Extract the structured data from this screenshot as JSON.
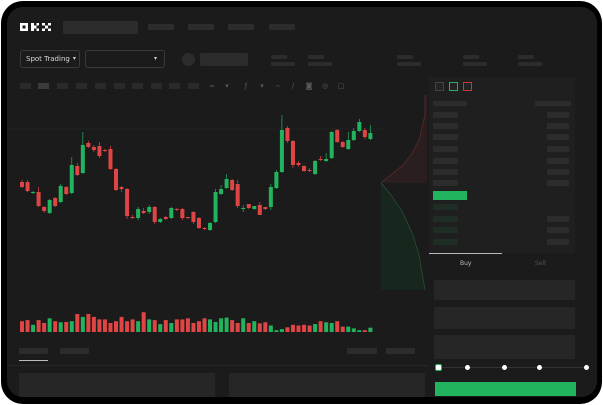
{
  "brand": {
    "logo": "OKX"
  },
  "header": {
    "nav_items": 4
  },
  "pair_bar": {
    "mode_select": "Spot Trading"
  },
  "colors": {
    "up": "#22b35e",
    "down": "#e04545",
    "background": "#1b1b1b",
    "placeholder": "#2c2c2c"
  },
  "toolbar": {
    "icons": [
      "candle-interval",
      "chart-type",
      "indicator-icon",
      "line-icon",
      "draw-icon",
      "camera-icon",
      "settings-icon",
      "fullscreen-icon"
    ]
  },
  "order_book": {
    "view_icons": [
      "both-sides-icon",
      "bids-only-icon",
      "asks-only-icon"
    ]
  },
  "trade_panel": {
    "tabs": [
      {
        "label": "Buy",
        "active": true
      },
      {
        "label": "Sell",
        "active": false
      }
    ],
    "slider_percent": 0,
    "slider_stops": [
      0,
      25,
      50,
      75,
      100
    ]
  },
  "chart_data": {
    "type": "candlestick",
    "candles": [
      [
        68,
        70,
        62,
        63
      ],
      [
        68,
        70,
        58,
        59
      ],
      [
        57,
        59,
        56,
        58
      ],
      [
        58,
        63,
        43,
        44
      ],
      [
        43,
        44,
        37,
        39
      ],
      [
        37,
        51,
        36,
        50
      ],
      [
        52,
        53,
        43,
        44
      ],
      [
        48,
        66,
        47,
        64
      ],
      [
        63,
        64,
        55,
        56
      ],
      [
        57,
        93,
        56,
        85
      ],
      [
        84,
        87,
        74,
        75
      ],
      [
        77,
        118,
        76,
        105
      ],
      [
        107,
        109,
        102,
        103
      ],
      [
        103,
        105,
        98,
        100
      ],
      [
        104,
        108,
        92,
        94
      ],
      [
        100,
        101,
        98,
        99
      ],
      [
        101,
        104,
        80,
        81
      ],
      [
        81,
        82,
        59,
        60
      ],
      [
        63,
        64,
        58,
        61
      ],
      [
        61,
        62,
        31,
        34
      ],
      [
        33,
        35,
        31,
        32
      ],
      [
        32,
        43,
        30,
        41
      ],
      [
        39,
        42,
        36,
        37
      ],
      [
        38,
        45,
        36,
        43
      ],
      [
        43,
        44,
        26,
        28
      ],
      [
        28,
        32,
        27,
        31
      ],
      [
        33,
        34,
        30,
        31
      ],
      [
        32,
        43,
        31,
        42
      ],
      [
        41,
        42,
        39,
        40
      ],
      [
        41,
        42,
        30,
        32
      ],
      [
        33,
        33,
        31,
        32
      ],
      [
        38,
        39,
        26,
        28
      ],
      [
        32,
        33,
        21,
        22
      ],
      [
        22,
        23,
        20,
        21
      ],
      [
        20,
        28,
        19,
        27
      ],
      [
        28,
        61,
        27,
        58
      ],
      [
        56,
        65,
        55,
        61
      ],
      [
        62,
        76,
        61,
        71
      ],
      [
        70,
        71,
        59,
        60
      ],
      [
        66,
        70,
        42,
        44
      ],
      [
        41,
        45,
        38,
        42
      ],
      [
        46,
        46,
        41,
        42
      ],
      [
        41,
        44,
        40,
        44
      ],
      [
        45,
        48,
        35,
        35
      ],
      [
        43,
        43,
        40,
        41
      ],
      [
        43,
        66,
        40,
        63
      ],
      [
        62,
        80,
        61,
        78
      ],
      [
        78,
        135,
        77,
        120
      ],
      [
        122,
        124,
        107,
        109
      ],
      [
        109,
        110,
        82,
        85
      ],
      [
        87,
        89,
        83,
        85
      ],
      [
        84,
        85,
        78,
        79
      ],
      [
        80,
        82,
        78,
        79
      ],
      [
        76,
        90,
        75,
        89
      ],
      [
        91,
        94,
        89,
        90
      ],
      [
        89,
        97,
        88,
        91
      ],
      [
        92,
        119,
        91,
        118
      ],
      [
        120,
        121,
        107,
        108
      ],
      [
        108,
        109,
        102,
        103
      ],
      [
        101,
        118,
        100,
        110
      ],
      [
        110,
        122,
        109,
        119
      ],
      [
        119,
        131,
        118,
        128
      ],
      [
        120,
        122,
        111,
        113
      ],
      [
        111,
        125,
        110,
        117
      ]
    ],
    "volumes": [
      30,
      33,
      20,
      33,
      25,
      38,
      30,
      27,
      28,
      30,
      50,
      42,
      50,
      42,
      35,
      35,
      25,
      30,
      42,
      30,
      35,
      30,
      55,
      35,
      33,
      22,
      33,
      25,
      35,
      35,
      38,
      25,
      30,
      38,
      35,
      28,
      38,
      40,
      33,
      25,
      38,
      25,
      30,
      24,
      27,
      18,
      5,
      8,
      13,
      20,
      18,
      20,
      18,
      22,
      30,
      27,
      25,
      30,
      15,
      15,
      10,
      5,
      5,
      12
    ],
    "grid": false
  }
}
